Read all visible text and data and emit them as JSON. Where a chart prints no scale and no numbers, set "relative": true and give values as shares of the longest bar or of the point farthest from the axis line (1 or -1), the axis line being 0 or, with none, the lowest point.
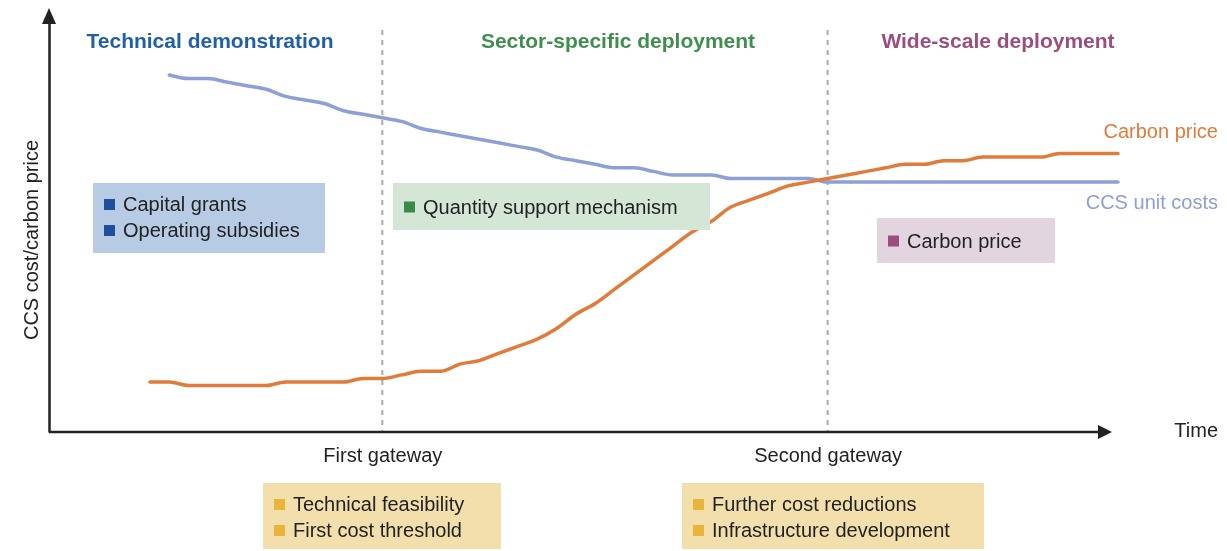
{
  "chart_data": {
    "type": "line",
    "relative": true,
    "xlabel": "Time",
    "ylabel": "CCS cost/carbon price",
    "categories": [
      null,
      null,
      null,
      null,
      null,
      null,
      null,
      null,
      null,
      null,
      null,
      null,
      "First gateway",
      null,
      null,
      null,
      null,
      null,
      null,
      null,
      null,
      null,
      null,
      null,
      null,
      null,
      null,
      null,
      null,
      null,
      null,
      null,
      null,
      null,
      null,
      "Second gateway",
      null,
      null,
      null,
      null,
      null,
      null,
      null,
      null,
      null,
      null,
      null,
      null,
      null,
      null,
      null
    ],
    "series": [
      {
        "name": "CCS unit costs",
        "color": "#8c9fd6",
        "values": [
          null,
          1,
          0.99,
          0.99,
          0.98,
          0.97,
          0.96,
          0.94,
          0.93,
          0.92,
          0.9,
          0.89,
          0.88,
          0.87,
          0.85,
          0.84,
          0.83,
          0.82,
          0.81,
          0.8,
          0.79,
          0.77,
          0.76,
          0.75,
          0.74,
          0.74,
          0.73,
          0.72,
          0.72,
          0.72,
          0.71,
          0.71,
          0.71,
          0.71,
          0.71,
          0.7,
          0.7,
          0.7,
          0.7,
          0.7,
          0.7,
          0.7,
          0.7,
          0.7,
          0.7,
          0.7,
          0.7,
          0.7,
          0.7,
          0.7,
          0.7
        ]
      },
      {
        "name": "Carbon price",
        "color": "#e07b39",
        "values": [
          0.14,
          0.14,
          0.13,
          0.13,
          0.13,
          0.13,
          0.13,
          0.14,
          0.14,
          0.14,
          0.14,
          0.15,
          0.15,
          0.16,
          0.17,
          0.17,
          0.19,
          0.2,
          0.22,
          0.24,
          0.26,
          0.29,
          0.33,
          0.36,
          0.4,
          0.44,
          0.48,
          0.52,
          0.56,
          0.59,
          0.63,
          0.65,
          0.67,
          0.69,
          0.7,
          0.71,
          0.72,
          0.73,
          0.74,
          0.75,
          0.75,
          0.76,
          0.76,
          0.77,
          0.77,
          0.77,
          0.77,
          0.78,
          0.78,
          0.78,
          0.78
        ]
      }
    ],
    "ref_lines": [
      {
        "axis": "x",
        "value": "First gateway",
        "color": "#aaaaaa",
        "line_style": "dashed"
      },
      {
        "axis": "x",
        "value": "Second gateway",
        "color": "#aaaaaa",
        "line_style": "dashed"
      }
    ],
    "annotations": [
      "Technical demonstration",
      "Sector-specific deployment",
      "Wide-scale deployment",
      "Capital grants",
      "Operating subsidies",
      "Quantity support mechanism",
      "Carbon price",
      "Technical feasibility",
      "First cost threshold",
      "Further cost reductions",
      "Infrastructure development"
    ]
  }
}
